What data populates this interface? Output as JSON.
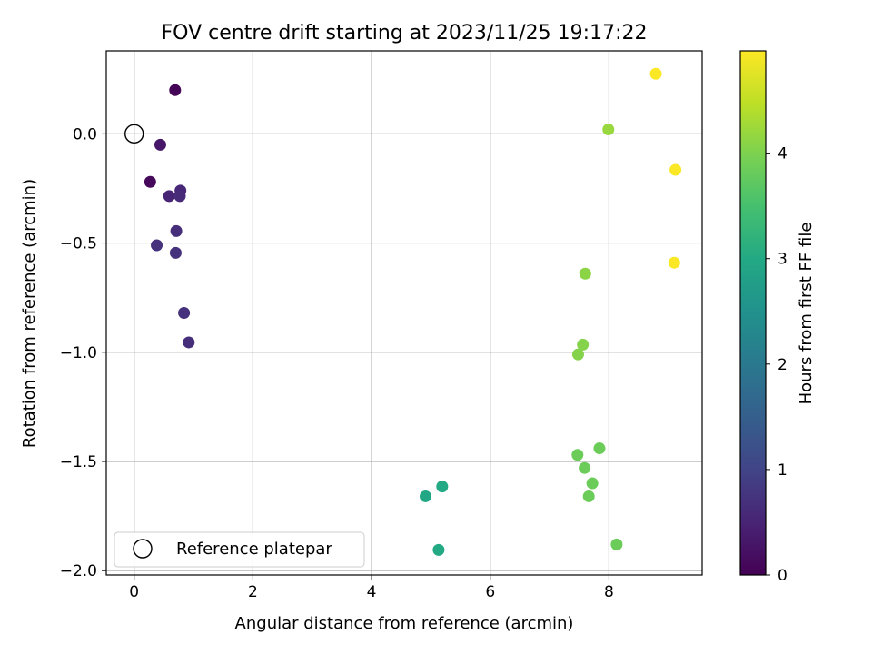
{
  "chart_data": {
    "type": "scatter",
    "title": "FOV centre drift starting at 2023/11/25 19:17:22",
    "xlabel": "Angular distance from reference (arcmin)",
    "ylabel": "Rotation from reference (arcmin)",
    "xlim": [
      -0.47,
      9.57
    ],
    "ylim": [
      -2.02,
      0.38
    ],
    "xticks": [
      0,
      2,
      4,
      6,
      8
    ],
    "yticks": [
      0.0,
      -0.5,
      -1.0,
      -1.5,
      -2.0
    ],
    "xtick_labels": [
      "0",
      "2",
      "4",
      "6",
      "8"
    ],
    "ytick_labels": [
      "0.0",
      "−0.5",
      "−1.0",
      "−1.5",
      "−2.0"
    ],
    "grid": true,
    "colormap": "viridis",
    "colorbar": {
      "label": "Hours from first FF file",
      "range": [
        0,
        4.97
      ],
      "ticks": [
        0,
        1,
        2,
        3,
        4
      ],
      "tick_labels": [
        "0",
        "1",
        "2",
        "3",
        "4"
      ]
    },
    "reference": {
      "x": 0,
      "y": 0,
      "label": "Reference platepar"
    },
    "legend": {
      "position": "lower-left"
    },
    "points": [
      {
        "x": 0.69,
        "y": 0.2,
        "hours": 0.05
      },
      {
        "x": 0.27,
        "y": -0.22,
        "hours": 0.1
      },
      {
        "x": 0.44,
        "y": -0.05,
        "hours": 0.3
      },
      {
        "x": 0.59,
        "y": -0.285,
        "hours": 0.5
      },
      {
        "x": 0.78,
        "y": -0.26,
        "hours": 0.55
      },
      {
        "x": 0.77,
        "y": -0.285,
        "hours": 0.6
      },
      {
        "x": 0.71,
        "y": -0.445,
        "hours": 0.65
      },
      {
        "x": 0.38,
        "y": -0.51,
        "hours": 0.7
      },
      {
        "x": 0.7,
        "y": -0.545,
        "hours": 0.7
      },
      {
        "x": 0.84,
        "y": -0.82,
        "hours": 0.7
      },
      {
        "x": 0.92,
        "y": -0.955,
        "hours": 0.65
      },
      {
        "x": 4.91,
        "y": -1.66,
        "hours": 2.95
      },
      {
        "x": 5.19,
        "y": -1.615,
        "hours": 3.0
      },
      {
        "x": 5.13,
        "y": -1.905,
        "hours": 3.0
      },
      {
        "x": 7.47,
        "y": -1.47,
        "hours": 3.85
      },
      {
        "x": 7.59,
        "y": -1.53,
        "hours": 3.85
      },
      {
        "x": 7.72,
        "y": -1.6,
        "hours": 3.85
      },
      {
        "x": 7.66,
        "y": -1.66,
        "hours": 3.85
      },
      {
        "x": 7.84,
        "y": -1.44,
        "hours": 3.85
      },
      {
        "x": 8.13,
        "y": -1.88,
        "hours": 3.85
      },
      {
        "x": 7.48,
        "y": -1.01,
        "hours": 4.05
      },
      {
        "x": 7.56,
        "y": -0.965,
        "hours": 4.05
      },
      {
        "x": 7.6,
        "y": -0.64,
        "hours": 4.1
      },
      {
        "x": 7.99,
        "y": 0.02,
        "hours": 4.2
      },
      {
        "x": 8.79,
        "y": 0.275,
        "hours": 4.95
      },
      {
        "x": 9.12,
        "y": -0.165,
        "hours": 4.95
      },
      {
        "x": 9.1,
        "y": -0.59,
        "hours": 4.95
      }
    ]
  }
}
